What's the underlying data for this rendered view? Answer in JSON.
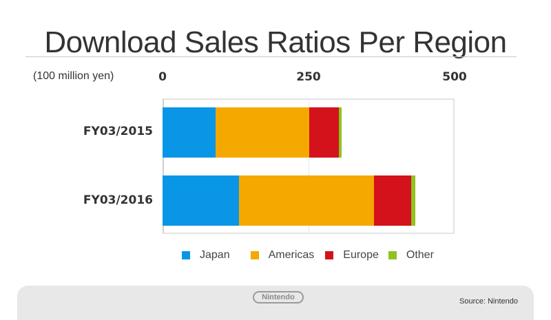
{
  "title": "Download Sales Ratios Per Region",
  "unit_label": "(100 million yen)",
  "axis": {
    "ticks": [
      "0",
      "250",
      "500"
    ]
  },
  "categories": [
    "FY03/2015",
    "FY03/2016"
  ],
  "legend": [
    {
      "label": "Japan",
      "color": "#0a96e6"
    },
    {
      "label": "Americas",
      "color": "#f5a800"
    },
    {
      "label": "Europe",
      "color": "#d3121c"
    },
    {
      "label": "Other",
      "color": "#8fc31f"
    }
  ],
  "footer": {
    "logo": "Nintendo",
    "source": "Source: Nintendo"
  },
  "chart_data": {
    "type": "bar",
    "orientation": "horizontal",
    "stacked": true,
    "title": "Download Sales Ratios Per Region",
    "xlabel": "(100 million yen)",
    "ylabel": "",
    "xlim": [
      0,
      500
    ],
    "xticks": [
      0,
      250,
      500
    ],
    "grid": true,
    "legend_position": "bottom",
    "categories": [
      "FY03/2015",
      "FY03/2016"
    ],
    "series": [
      {
        "name": "Japan",
        "color": "#0a96e6",
        "values": [
          91,
          131
        ]
      },
      {
        "name": "Americas",
        "color": "#f5a800",
        "values": [
          160,
          231
        ]
      },
      {
        "name": "Europe",
        "color": "#d3121c",
        "values": [
          51,
          64
        ]
      },
      {
        "name": "Other",
        "color": "#8fc31f",
        "values": [
          5,
          7
        ]
      }
    ]
  }
}
